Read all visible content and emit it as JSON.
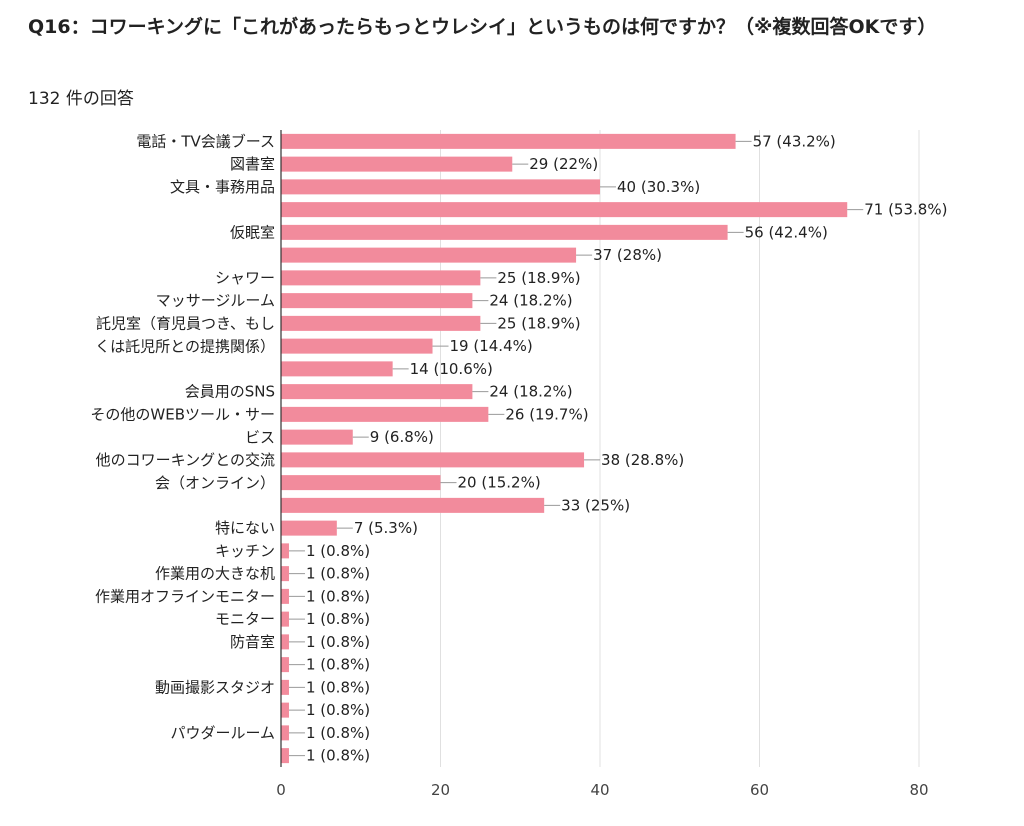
{
  "header": {
    "title": "Q16：コワーキングに「これがあったらもっとウレシイ」というものは何ですか？（※複数回答OKです）",
    "response_count": "132 件の回答"
  },
  "colors": {
    "bar": "#f28b9c",
    "grid": "#e0e0e0",
    "axis": "#333333",
    "connector": "#999999"
  },
  "chart_data": {
    "type": "bar",
    "orientation": "horizontal",
    "title": "Q16：コワーキングに「これがあったらもっとウレシイ」というものは何ですか？（※複数回答OKです）",
    "subtitle": "132 件の回答",
    "xlim": [
      0,
      80
    ],
    "x_ticks": [
      0,
      20,
      40,
      60,
      80
    ],
    "grid": true,
    "categories": [
      "電話・TV会議ブース",
      "図書室",
      "文具・事務用品",
      "",
      "仮眠室",
      "",
      "シャワー",
      "マッサージルーム",
      "託児室（育児員つき、もしくは託児所との提携関係）",
      "",
      "",
      "会員用のSNS",
      "その他のWEBツール・サービス",
      "",
      "他のコワーキングとの交流会（オンライン）",
      "",
      "",
      "特にない",
      "キッチン",
      "作業用の大きな机",
      "作業用オフラインモニター",
      "モニター",
      "防音室",
      "",
      "動画撮影スタジオ",
      "",
      "パウダールーム",
      ""
    ],
    "category_lines": [
      [
        "電話・TV会議ブース"
      ],
      [
        "図書室"
      ],
      [
        "文具・事務用品"
      ],
      [],
      [
        "仮眠室"
      ],
      [],
      [
        "シャワー"
      ],
      [
        "マッサージルーム"
      ],
      [
        "託児室（育児員つき、もし",
        "くは託児所との提携関係）"
      ],
      [],
      [],
      [
        "会員用のSNS"
      ],
      [
        "その他のWEBツール・サー",
        "ビス"
      ],
      [],
      [
        "他のコワーキングとの交流",
        "会（オンライン）"
      ],
      [],
      [],
      [
        "特にない"
      ],
      [
        "キッチン"
      ],
      [
        "作業用の大きな机"
      ],
      [
        "作業用オフラインモニター"
      ],
      [
        "モニター"
      ],
      [
        "防音室"
      ],
      [],
      [
        "動画撮影スタジオ"
      ],
      [],
      [
        "パウダールーム"
      ],
      []
    ],
    "values": [
      57,
      29,
      40,
      71,
      56,
      37,
      25,
      24,
      25,
      19,
      14,
      24,
      26,
      9,
      38,
      20,
      33,
      7,
      1,
      1,
      1,
      1,
      1,
      1,
      1,
      1,
      1,
      1
    ],
    "value_labels": [
      "57 (43.2%)",
      "29 (22%)",
      "40 (30.3%)",
      "71 (53.8%)",
      "56 (42.4%)",
      "37 (28%)",
      "25 (18.9%)",
      "24 (18.2%)",
      "25 (18.9%)",
      "19 (14.4%)",
      "14 (10.6%)",
      "24 (18.2%)",
      "26 (19.7%)",
      "9 (6.8%)",
      "38 (28.8%)",
      "20 (15.2%)",
      "33 (25%)",
      "7 (5.3%)",
      "1 (0.8%)",
      "1 (0.8%)",
      "1 (0.8%)",
      "1 (0.8%)",
      "1 (0.8%)",
      "1 (0.8%)",
      "1 (0.8%)",
      "1 (0.8%)",
      "1 (0.8%)",
      "1 (0.8%)"
    ]
  }
}
